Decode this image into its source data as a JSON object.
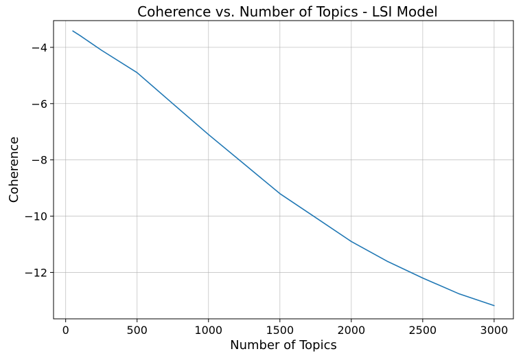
{
  "chart_data": {
    "type": "line",
    "title": "Coherence vs. Number of Topics - LSI Model",
    "xlabel": "Number of Topics",
    "ylabel": "Coherence",
    "xlim": [
      -85,
      3135
    ],
    "ylim": [
      -13.65,
      -3.05
    ],
    "xticks": [
      0,
      500,
      1000,
      1500,
      2000,
      2500,
      3000
    ],
    "xtick_labels": [
      "0",
      "500",
      "1000",
      "1500",
      "2000",
      "2500",
      "3000"
    ],
    "yticks": [
      -4,
      -6,
      -8,
      -10,
      -12
    ],
    "ytick_labels": [
      "−4",
      "−6",
      "−8",
      "−10",
      "−12"
    ],
    "grid": true,
    "series": [
      {
        "color": "#1f77b4",
        "x": [
          50,
          100,
          250,
          500,
          750,
          1000,
          1250,
          1500,
          1750,
          2000,
          2250,
          2500,
          2750,
          3000
        ],
        "y": [
          -3.42,
          -3.58,
          -4.1,
          -4.9,
          -6.0,
          -7.1,
          -8.15,
          -9.2,
          -10.05,
          -10.9,
          -11.6,
          -12.2,
          -12.75,
          -13.18
        ]
      }
    ]
  }
}
